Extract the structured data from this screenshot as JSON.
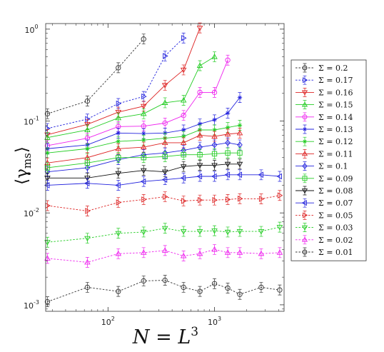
{
  "chart_data": {
    "type": "line",
    "title": "",
    "xlabel_main": "N = L",
    "xlabel_sup": "3",
    "ylabel_main": "⟨γ",
    "ylabel_sub": "ms",
    "ylabel_close": "⟩",
    "xscale": "log",
    "yscale": "log",
    "xlim": [
      26,
      4500
    ],
    "ylim": [
      0.00085,
      1.15
    ],
    "grid": false,
    "legend_position": "outside-right",
    "x_ticks": [
      {
        "value": 100,
        "base": "10",
        "exp": "2"
      },
      {
        "value": 1000,
        "base": "10",
        "exp": "3"
      }
    ],
    "y_ticks": [
      {
        "value": 0.001,
        "base": "10",
        "exp": "-3"
      },
      {
        "value": 0.01,
        "base": "10",
        "exp": "-2"
      },
      {
        "value": 0.1,
        "base": "10",
        "exp": "-1"
      },
      {
        "value": 1,
        "base": "10",
        "exp": "0"
      }
    ],
    "series": [
      {
        "name": "Σ = 0.2",
        "color": "#333333",
        "dash": true,
        "marker": "circle",
        "x": [
          27,
          64,
          125,
          216
        ],
        "y": [
          0.12,
          0.165,
          0.38,
          0.78
        ]
      },
      {
        "name": "Σ = 0.17",
        "color": "#2222dd",
        "dash": true,
        "marker": "triangle-right",
        "x": [
          27,
          64,
          125,
          216,
          343,
          512
        ],
        "y": [
          0.083,
          0.105,
          0.155,
          0.185,
          0.51,
          0.8
        ]
      },
      {
        "name": "Σ = 0.16",
        "color": "#dd2222",
        "dash": false,
        "marker": "triangle-down",
        "x": [
          27,
          64,
          125,
          216,
          343,
          512,
          729
        ],
        "y": [
          0.071,
          0.092,
          0.125,
          0.145,
          0.245,
          0.36,
          1.03
        ]
      },
      {
        "name": "Σ = 0.15",
        "color": "#22cc22",
        "dash": false,
        "marker": "triangle-up",
        "x": [
          27,
          64,
          125,
          216,
          343,
          512,
          729,
          1000
        ],
        "y": [
          0.066,
          0.08,
          0.108,
          0.12,
          0.158,
          0.168,
          0.4,
          0.5
        ]
      },
      {
        "name": "Σ = 0.14",
        "color": "#ee22ee",
        "dash": false,
        "marker": "circle",
        "x": [
          27,
          64,
          125,
          216,
          343,
          512,
          729,
          1000,
          1331
        ],
        "y": [
          0.054,
          0.065,
          0.087,
          0.088,
          0.095,
          0.115,
          0.205,
          0.205,
          0.46
        ]
      },
      {
        "name": "Σ = 0.13",
        "color": "#2222dd",
        "dash": false,
        "marker": "star",
        "x": [
          27,
          64,
          125,
          216,
          343,
          512,
          729,
          1000,
          1331,
          1728
        ],
        "y": [
          0.05,
          0.055,
          0.074,
          0.073,
          0.074,
          0.08,
          0.093,
          0.103,
          0.122,
          0.18
        ]
      },
      {
        "name": "Σ = 0.12",
        "color": "#22cc22",
        "dash": false,
        "marker": "star",
        "x": [
          27,
          64,
          125,
          216,
          343,
          512,
          729,
          1000,
          1331,
          1728
        ],
        "y": [
          0.045,
          0.05,
          0.06,
          0.062,
          0.065,
          0.068,
          0.08,
          0.08,
          0.085,
          0.09
        ]
      },
      {
        "name": "Σ = 0.11",
        "color": "#dd2222",
        "dash": false,
        "marker": "triangle-up",
        "x": [
          27,
          64,
          125,
          216,
          343,
          512,
          729,
          1000,
          1331,
          1728
        ],
        "y": [
          0.035,
          0.04,
          0.05,
          0.052,
          0.058,
          0.058,
          0.07,
          0.068,
          0.072,
          0.074
        ]
      },
      {
        "name": "Σ = 0.1",
        "color": "#2222dd",
        "dash": false,
        "marker": "diamond",
        "x": [
          27,
          64,
          125,
          216,
          343,
          512,
          729,
          1000,
          1331,
          1728
        ],
        "y": [
          0.028,
          0.031,
          0.038,
          0.043,
          0.045,
          0.048,
          0.052,
          0.055,
          0.058,
          0.055
        ]
      },
      {
        "name": "Σ = 0.09",
        "color": "#22cc22",
        "dash": false,
        "marker": "square",
        "x": [
          27,
          64,
          125,
          216,
          343,
          512,
          729,
          1000,
          1331,
          1728
        ],
        "y": [
          0.031,
          0.035,
          0.04,
          0.04,
          0.041,
          0.043,
          0.043,
          0.044,
          0.045,
          0.045
        ]
      },
      {
        "name": "Σ = 0.08",
        "color": "#111111",
        "dash": false,
        "marker": "triangle-down",
        "x": [
          27,
          64,
          125,
          216,
          343,
          512,
          729,
          1000,
          1331,
          1728
        ],
        "y": [
          0.024,
          0.024,
          0.027,
          0.029,
          0.028,
          0.032,
          0.033,
          0.033,
          0.034,
          0.034
        ]
      },
      {
        "name": "Σ = 0.07",
        "color": "#2222dd",
        "dash": false,
        "marker": "triangle-left",
        "x": [
          27,
          64,
          125,
          216,
          343,
          512,
          729,
          1000,
          1331,
          1728,
          2744,
          4096
        ],
        "y": [
          0.02,
          0.021,
          0.02,
          0.022,
          0.023,
          0.024,
          0.025,
          0.025,
          0.026,
          0.026,
          0.026,
          0.025
        ]
      },
      {
        "name": "Σ = 0.05",
        "color": "#dd2222",
        "dash": true,
        "marker": "triangle-right",
        "x": [
          27,
          64,
          125,
          216,
          343,
          512,
          729,
          1000,
          1331,
          1728,
          2744,
          4096
        ],
        "y": [
          0.012,
          0.0105,
          0.013,
          0.014,
          0.015,
          0.0135,
          0.0138,
          0.0138,
          0.014,
          0.0143,
          0.0142,
          0.0155
        ]
      },
      {
        "name": "Σ = 0.03",
        "color": "#22cc22",
        "dash": true,
        "marker": "triangle-down",
        "x": [
          27,
          64,
          125,
          216,
          343,
          512,
          729,
          1000,
          1331,
          1728,
          2744,
          4096
        ],
        "y": [
          0.0048,
          0.0053,
          0.006,
          0.0062,
          0.0068,
          0.0063,
          0.0063,
          0.0064,
          0.0062,
          0.0063,
          0.0063,
          0.007
        ]
      },
      {
        "name": "Σ = 0.02",
        "color": "#ee22ee",
        "dash": true,
        "marker": "triangle-up",
        "x": [
          27,
          64,
          125,
          216,
          343,
          512,
          729,
          1000,
          1331,
          1728,
          2744,
          4096
        ],
        "y": [
          0.0032,
          0.0029,
          0.0036,
          0.0037,
          0.0039,
          0.0034,
          0.0036,
          0.004,
          0.0037,
          0.0037,
          0.0036,
          0.0037
        ]
      },
      {
        "name": "Σ = 0.01",
        "color": "#333333",
        "dash": true,
        "marker": "circle",
        "x": [
          27,
          64,
          125,
          216,
          343,
          512,
          729,
          1000,
          1331,
          1728,
          2744,
          4096
        ],
        "y": [
          0.00108,
          0.00155,
          0.0014,
          0.00182,
          0.00185,
          0.00155,
          0.0014,
          0.0017,
          0.00152,
          0.0013,
          0.00155,
          0.00145
        ]
      }
    ]
  }
}
